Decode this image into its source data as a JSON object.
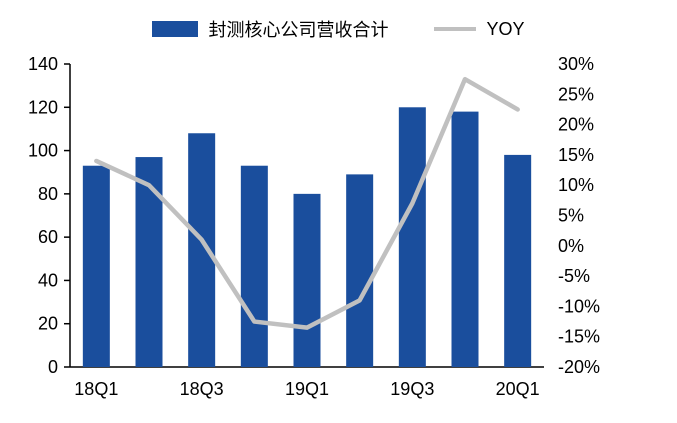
{
  "chart_data": {
    "type": "bar",
    "subtype": "combo-bar-line",
    "categories": [
      "18Q1",
      "18Q2",
      "18Q3",
      "18Q4",
      "19Q1",
      "19Q2",
      "19Q3",
      "19Q4",
      "20Q1"
    ],
    "x_tick_labels": [
      "18Q1",
      "18Q3",
      "19Q1",
      "19Q3",
      "20Q1"
    ],
    "x_tick_indices": [
      0,
      2,
      4,
      6,
      8
    ],
    "series": [
      {
        "name": "封测核心公司营收合计",
        "type": "bar",
        "axis": "left",
        "color": "#1a4e9d",
        "values": [
          93,
          97,
          108,
          93,
          80,
          89,
          120,
          118,
          98
        ]
      },
      {
        "name": "YOY",
        "type": "line",
        "axis": "right",
        "color": "#c0c0c0",
        "values": [
          14,
          10,
          1,
          -12.5,
          -13.5,
          -9,
          7,
          27.5,
          22.5
        ]
      }
    ],
    "left_axis": {
      "min": 0,
      "max": 140,
      "step": 20,
      "labels": [
        "0",
        "20",
        "40",
        "60",
        "80",
        "100",
        "120",
        "140"
      ]
    },
    "right_axis": {
      "min": -20,
      "max": 30,
      "step": 5,
      "labels": [
        "-20%",
        "-15%",
        "-10%",
        "-5%",
        "0%",
        "5%",
        "10%",
        "15%",
        "20%",
        "25%",
        "30%"
      ]
    },
    "title": "",
    "legend_position": "top",
    "grid": false
  }
}
